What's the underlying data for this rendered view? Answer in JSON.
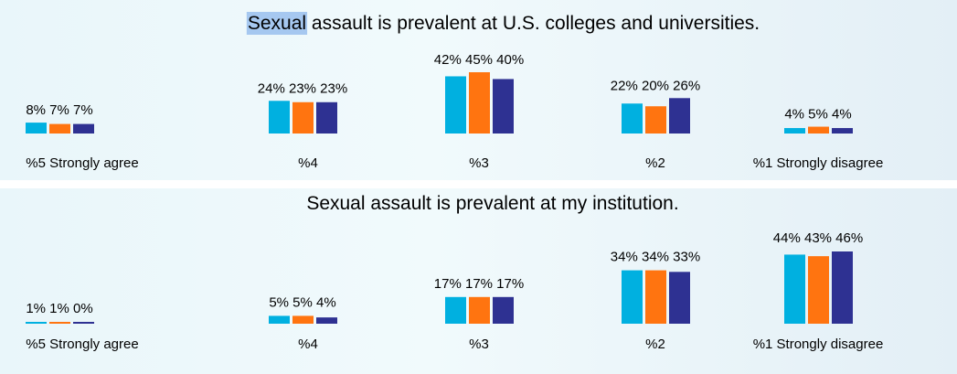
{
  "chart_data": [
    {
      "type": "bar",
      "title": "Sexual assault is prevalent at U.S. colleges and universities.",
      "title_highlight": "Sexual",
      "categories": [
        "%5 Strongly agree",
        "%4",
        "%3",
        "%2",
        "%1 Strongly disagree"
      ],
      "series": [
        {
          "values": [
            8,
            24,
            42,
            22,
            4
          ]
        },
        {
          "values": [
            7,
            23,
            45,
            20,
            5
          ]
        },
        {
          "values": [
            7,
            23,
            40,
            26,
            4
          ]
        }
      ],
      "value_labels": [
        [
          "8%",
          "7%",
          "7%"
        ],
        [
          "24%",
          "23%",
          "23%"
        ],
        [
          "42%",
          "45%",
          "40%"
        ],
        [
          "22%",
          "20%",
          "26%"
        ],
        [
          "4%",
          "5%",
          "4%"
        ]
      ],
      "ylim": [
        0,
        50
      ],
      "grid": false
    },
    {
      "type": "bar",
      "title": "Sexual assault is prevalent at my institution.",
      "categories": [
        "%5 Strongly agree",
        "%4",
        "%3",
        "%2",
        "%1 Strongly disagree"
      ],
      "series": [
        {
          "values": [
            1,
            5,
            17,
            34,
            44
          ]
        },
        {
          "values": [
            1,
            5,
            17,
            34,
            43
          ]
        },
        {
          "values": [
            0,
            4,
            17,
            33,
            46
          ]
        }
      ],
      "value_labels": [
        [
          "1%",
          "1%",
          "0%"
        ],
        [
          "5%",
          "5%",
          "4%"
        ],
        [
          "17%",
          "17%",
          "17%"
        ],
        [
          "34%",
          "34%",
          "33%"
        ],
        [
          "44%",
          "43%",
          "46%"
        ]
      ],
      "ylim": [
        0,
        50
      ],
      "grid": false
    }
  ],
  "colors": {
    "series": [
      "#00b0e0",
      "#ff7410",
      "#2e3192"
    ],
    "highlight": "#a6c8f0",
    "panel_bg": "#ecf7fb"
  }
}
